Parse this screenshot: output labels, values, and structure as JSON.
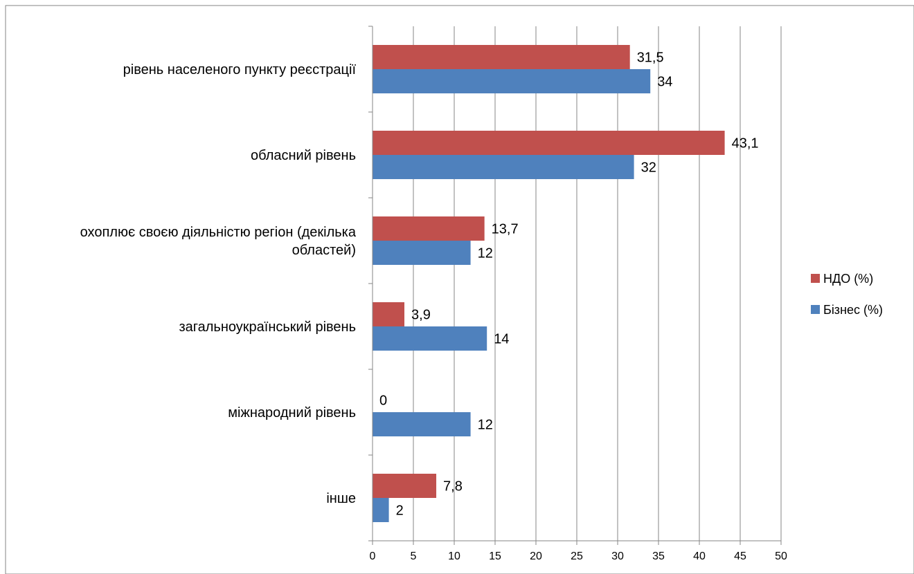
{
  "chart_data": {
    "type": "bar",
    "orientation": "horizontal",
    "categories": [
      "рівень населеного пункту реєстрації",
      "обласний рівень",
      "охоплює своєю діяльністю регіон (декілька областей)",
      "загальноукраїнський рівень",
      "міжнародний рівень",
      "інше"
    ],
    "category_lines": [
      [
        "рівень населеного пункту реєстрації"
      ],
      [
        "обласний рівень"
      ],
      [
        "охоплює своєю діяльністю регіон (декілька",
        "областей)"
      ],
      [
        "загальноукраїнський рівень"
      ],
      [
        "міжнародний рівень"
      ],
      [
        "інше"
      ]
    ],
    "series": [
      {
        "name": "НДО (%)",
        "color": "#C0504D",
        "values": [
          31.5,
          43.1,
          13.7,
          3.9,
          0,
          7.8
        ],
        "labels": [
          "31,5",
          "43,1",
          "13,7",
          "3,9",
          "0",
          "7,8"
        ]
      },
      {
        "name": "Бізнес (%)",
        "color": "#4F81BD",
        "values": [
          34,
          32,
          12,
          14,
          12,
          2
        ],
        "labels": [
          "34",
          "32",
          "12",
          "14",
          "12",
          "2"
        ]
      }
    ],
    "xlim": [
      0,
      50
    ],
    "xticks": [
      0,
      5,
      10,
      15,
      20,
      25,
      30,
      35,
      40,
      45,
      50
    ],
    "grid": true,
    "legend_position": "right"
  }
}
